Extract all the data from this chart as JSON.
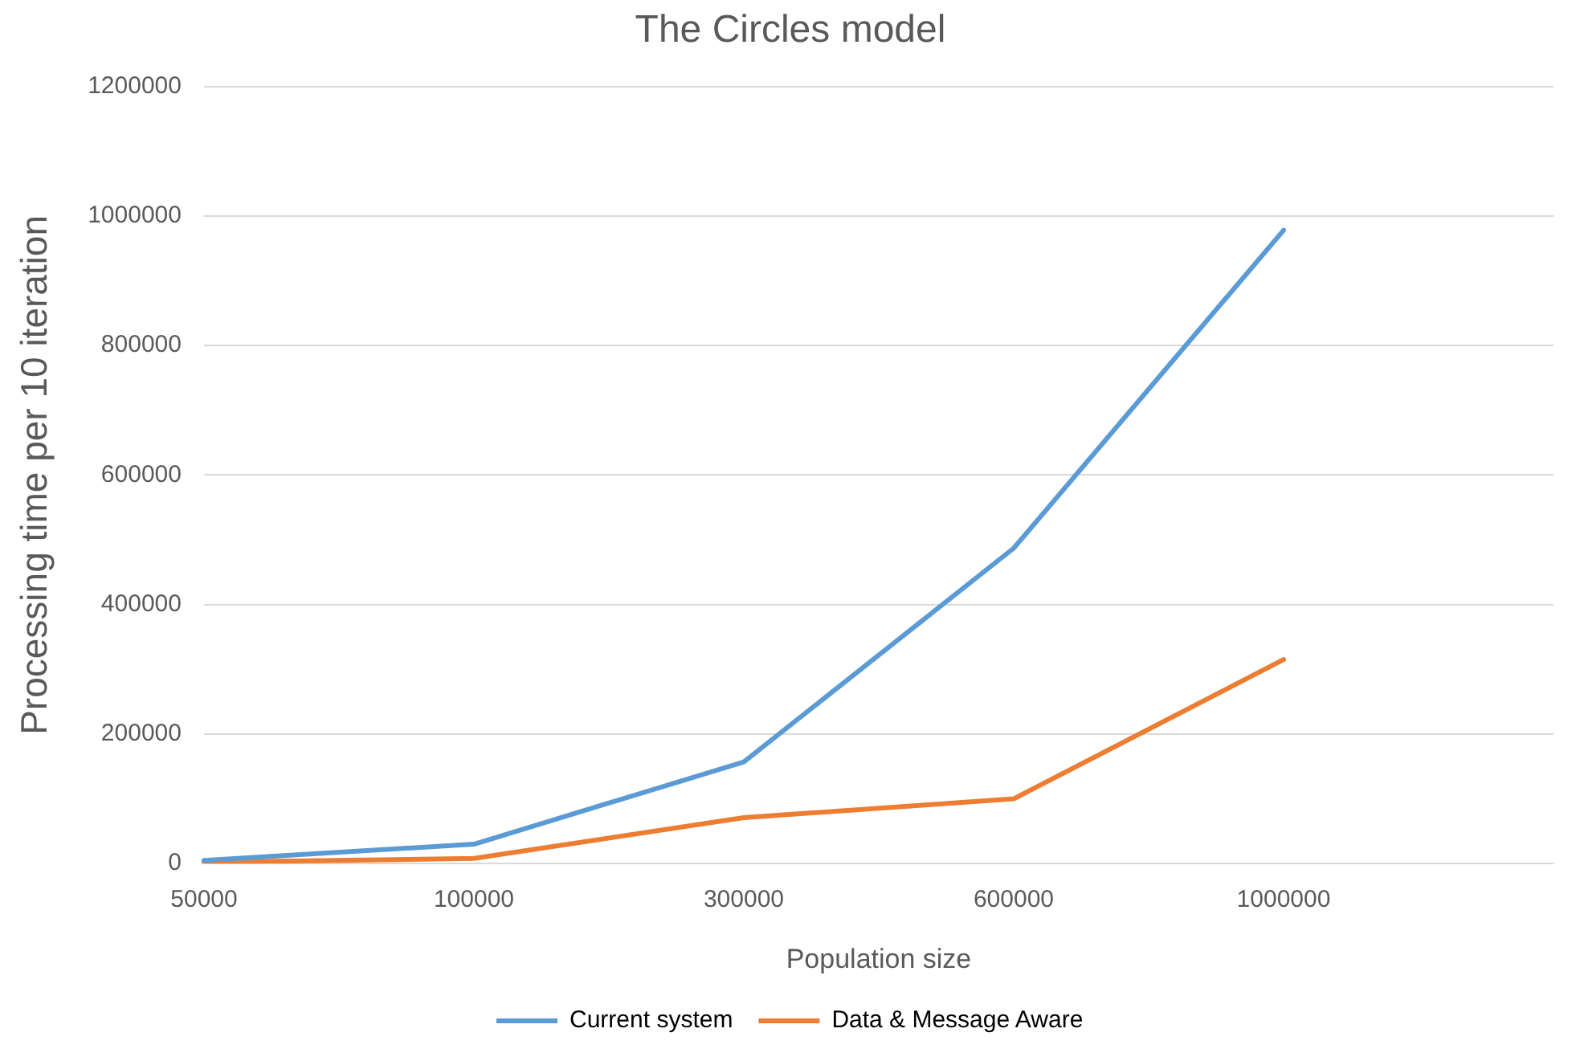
{
  "chart_data": {
    "type": "line",
    "title": "The Circles model",
    "xlabel": "Population size",
    "ylabel": "Processing time per 10 iteration",
    "categories": [
      "50000",
      "100000",
      "300000",
      "600000",
      "1000000",
      null
    ],
    "series": [
      {
        "name": "Current system",
        "color": "#5b9bd5",
        "values": [
          5000,
          30000,
          157000,
          487000,
          978000,
          null
        ]
      },
      {
        "name": "Data & Message Aware",
        "color": "#ed7d31",
        "values": [
          2000,
          8000,
          71000,
          100000,
          315000,
          null
        ]
      }
    ],
    "ylim": [
      0,
      1200000
    ],
    "yticks": [
      0,
      200000,
      400000,
      600000,
      800000,
      1000000,
      1200000
    ],
    "grid": "y",
    "legend": "bottom",
    "marker": "none",
    "line_style": "solid"
  }
}
